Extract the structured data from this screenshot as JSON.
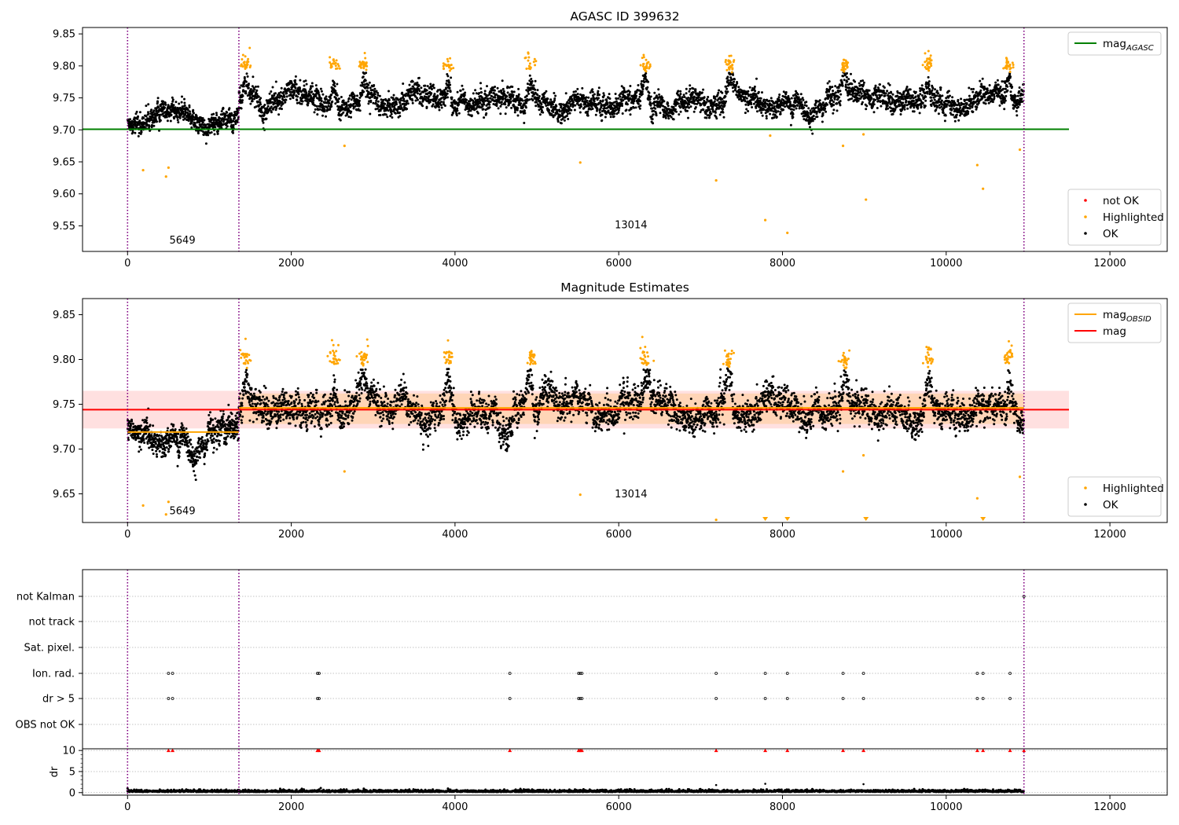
{
  "chart_data": [
    {
      "type": "scatter",
      "title": "AGASC ID 399632",
      "xlim": [
        -550,
        12700
      ],
      "ylim": [
        9.51,
        9.86
      ],
      "xticks": [
        0,
        2000,
        4000,
        6000,
        8000,
        10000,
        12000
      ],
      "yticks": [
        9.55,
        9.6,
        9.65,
        9.7,
        9.75,
        9.8,
        9.85
      ],
      "grid": false,
      "obs_boundaries": [
        0,
        1360,
        10950
      ],
      "obs_labels": [
        {
          "text": "5649",
          "x": 670,
          "y": 9.522
        },
        {
          "text": "13014",
          "x": 6150,
          "y": 9.546
        }
      ],
      "lines": [
        {
          "name": "mag",
          "name_sub": "AGASC",
          "color": "#008000",
          "x": [
            -550,
            11500
          ],
          "y": [
            9.701,
            9.701
          ]
        }
      ],
      "legends": [
        {
          "placement": "top-right",
          "entries": [
            {
              "label": "mag",
              "sub": "AGASC",
              "kind": "line",
              "color": "#008000"
            }
          ]
        },
        {
          "placement": "bottom-right",
          "entries": [
            {
              "label": "not OK",
              "kind": "marker",
              "color": "#ff0000"
            },
            {
              "label": "Highlighted",
              "kind": "marker",
              "color": "#ffa500"
            },
            {
              "label": "OK",
              "kind": "marker",
              "color": "#000000"
            }
          ]
        }
      ],
      "series": [
        {
          "name": "OK",
          "color": "#000000",
          "segments": [
            {
              "x": [
                0,
                1360
              ],
              "center": [
                9.718,
                9.71
              ],
              "spread": 0.012
            },
            {
              "x": [
                1360,
                10950
              ],
              "center": [
                9.744,
                9.744
              ],
              "spread": 0.014
            }
          ],
          "peaks": [
            [
              1450,
              9.79
            ],
            [
              2520,
              9.78
            ],
            [
              2880,
              9.78
            ],
            [
              3920,
              9.785
            ],
            [
              4920,
              9.78
            ],
            [
              6320,
              9.785
            ],
            [
              7350,
              9.785
            ],
            [
              8760,
              9.78
            ],
            [
              9780,
              9.78
            ],
            [
              10760,
              9.78
            ]
          ]
        },
        {
          "name": "Highlighted",
          "color": "#ffa500",
          "x": [
            190,
            470,
            500,
            1430,
            2650,
            5530,
            7190,
            7790,
            7850,
            8060,
            8740,
            8990,
            9020,
            10380,
            10450,
            10900
          ],
          "y": [
            9.637,
            9.627,
            9.641,
            9.806,
            9.675,
            9.649,
            9.621,
            9.559,
            9.691,
            9.539,
            9.675,
            9.693,
            9.591,
            9.645,
            9.608,
            9.669
          ]
        },
        {
          "name": "not OK",
          "color": "#ff0000",
          "x": [],
          "y": []
        }
      ]
    },
    {
      "type": "scatter",
      "title": "Magnitude Estimates",
      "xlim": [
        -550,
        12700
      ],
      "ylim": [
        9.618,
        9.868
      ],
      "xticks": [
        0,
        2000,
        4000,
        6000,
        8000,
        10000,
        12000
      ],
      "yticks": [
        9.65,
        9.7,
        9.75,
        9.8,
        9.85
      ],
      "grid": false,
      "obs_boundaries": [
        0,
        1360,
        10950
      ],
      "obs_labels": [
        {
          "text": "5649",
          "x": 670,
          "y": 9.627
        },
        {
          "text": "13014",
          "x": 6150,
          "y": 9.646
        }
      ],
      "band": {
        "x": [
          -550,
          11500
        ],
        "y": [
          9.723,
          9.765
        ],
        "color": "#ff0000",
        "opacity": 0.12
      },
      "band_obs": {
        "x": [
          1360,
          10950
        ],
        "y": [
          9.728,
          9.762
        ],
        "color": "#ffa500",
        "opacity": 0.18
      },
      "lines": [
        {
          "name": "mag",
          "name_sub": "OBSID",
          "color": "#ffa500",
          "x": [
            0,
            1360
          ],
          "y": [
            9.719,
            9.719
          ]
        },
        {
          "name": "mag",
          "name_sub": "OBSID",
          "color": "#ffa500",
          "x": [
            1360,
            10950
          ],
          "y": [
            9.746,
            9.746
          ]
        },
        {
          "name": "mag",
          "color": "#ff0000",
          "x": [
            -550,
            11500
          ],
          "y": [
            9.744,
            9.744
          ]
        }
      ],
      "legends": [
        {
          "placement": "top-right",
          "entries": [
            {
              "label": "mag",
              "sub": "OBSID",
              "kind": "line",
              "color": "#ffa500"
            },
            {
              "label": "mag",
              "kind": "line",
              "color": "#ff0000"
            }
          ]
        },
        {
          "placement": "bottom-right",
          "entries": [
            {
              "label": "Highlighted",
              "kind": "marker",
              "color": "#ffa500"
            },
            {
              "label": "OK",
              "kind": "marker",
              "color": "#000000"
            }
          ]
        }
      ],
      "offscale_markers": {
        "color": "#ffa500",
        "x": [
          7790,
          8060,
          9020,
          10450
        ]
      },
      "series": [
        {
          "name": "OK",
          "color": "#000000",
          "segments": [
            {
              "x": [
                0,
                1360
              ],
              "center": [
                9.718,
                9.71
              ],
              "spread": 0.012
            },
            {
              "x": [
                1360,
                10950
              ],
              "center": [
                9.744,
                9.744
              ],
              "spread": 0.014
            }
          ],
          "peaks": [
            [
              1450,
              9.79
            ],
            [
              2520,
              9.78
            ],
            [
              2880,
              9.78
            ],
            [
              3920,
              9.785
            ],
            [
              4920,
              9.78
            ],
            [
              6320,
              9.785
            ],
            [
              7350,
              9.785
            ],
            [
              8760,
              9.78
            ],
            [
              9780,
              9.78
            ],
            [
              10760,
              9.78
            ]
          ]
        },
        {
          "name": "Highlighted",
          "color": "#ffa500",
          "x": [
            190,
            470,
            500,
            1430,
            2650,
            5530,
            7190,
            8740,
            8990,
            10380,
            10900
          ],
          "y": [
            9.637,
            9.627,
            9.641,
            9.806,
            9.675,
            9.649,
            9.621,
            9.675,
            9.693,
            9.645,
            9.669
          ]
        }
      ]
    },
    {
      "type": "scatter",
      "title": "",
      "xlim": [
        -550,
        12700
      ],
      "xticks": [
        0,
        2000,
        4000,
        6000,
        8000,
        10000,
        12000
      ],
      "obs_boundaries": [
        0,
        1360,
        10950
      ],
      "flag_rows": [
        "not Kalman",
        "not track",
        "Sat. pixel.",
        "Ion. rad.",
        "dr > 5",
        "OBS not OK"
      ],
      "flag_events": {
        "Ion. rad.": [
          500,
          550,
          2320,
          2340,
          4670,
          5510,
          5530,
          5550,
          7190,
          7790,
          8060,
          8740,
          8990,
          10380,
          10450,
          10780
        ],
        "dr > 5": [
          500,
          550,
          2320,
          2340,
          4670,
          5510,
          5530,
          5550,
          7190,
          7790,
          8060,
          8740,
          8990,
          10380,
          10450,
          10780
        ],
        "not Kalman": [
          10950
        ],
        "not track": [],
        "Sat. pixel.": [],
        "OBS not OK": []
      },
      "dr": {
        "ylabel": "dr",
        "ylim": [
          -0.6,
          10.4
        ],
        "yticks": [
          0,
          5,
          10
        ],
        "noise_level": 0.45,
        "outliers": {
          "x": [
            7190,
            7790,
            8990
          ],
          "y": [
            1.8,
            2.1,
            2.0
          ]
        },
        "clipped": {
          "color": "#ff0000",
          "value": 10,
          "x": [
            500,
            550,
            2320,
            2340,
            4670,
            5510,
            5530,
            5550,
            7190,
            7790,
            8060,
            8740,
            8990,
            10380,
            10450,
            10780,
            10950
          ]
        }
      }
    }
  ]
}
